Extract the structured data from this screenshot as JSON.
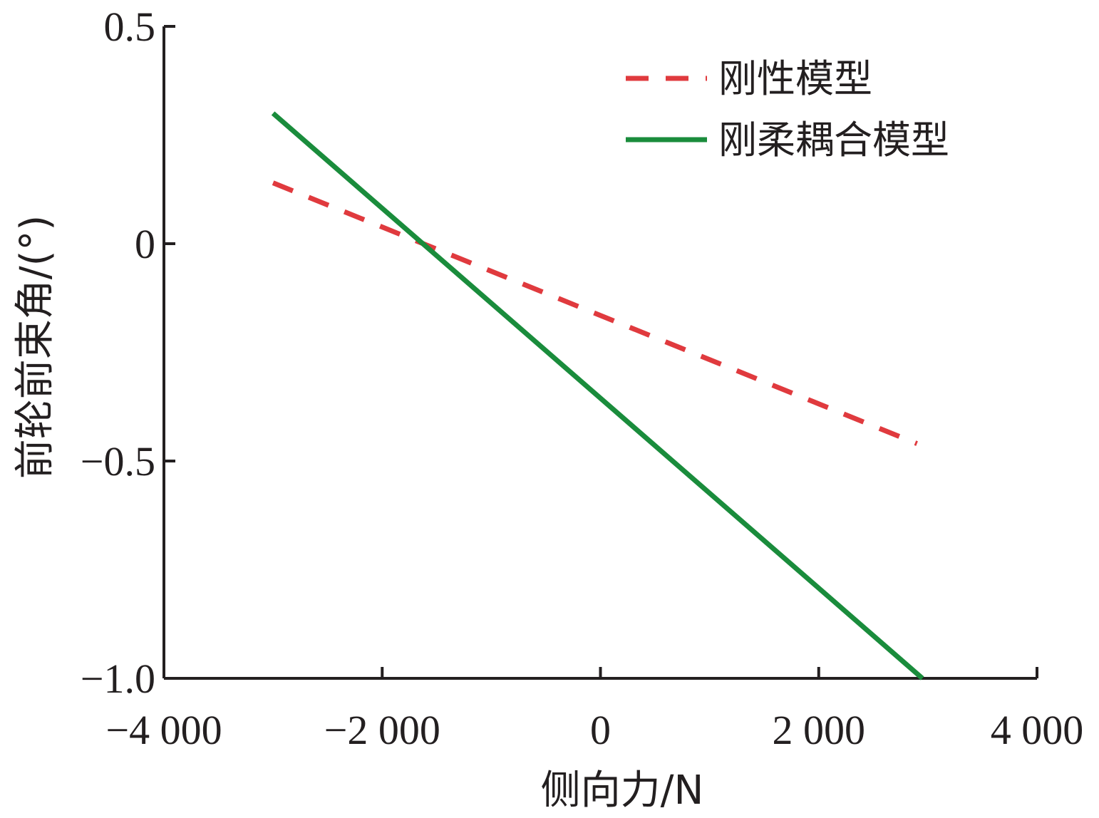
{
  "chart_data": {
    "type": "line",
    "title": "",
    "xlabel": "侧向力/N",
    "ylabel": "前轮前束角/(°)",
    "xlim": [
      -4000,
      4000
    ],
    "ylim": [
      -1.0,
      0.5
    ],
    "xticks": [
      -4000,
      -2000,
      0,
      2000,
      4000
    ],
    "xtick_labels": [
      "−4 000",
      "−2 000",
      "0",
      "2 000",
      "4 000"
    ],
    "yticks": [
      0.5,
      0,
      -0.5,
      -1.0
    ],
    "ytick_labels": [
      "0.5",
      "0",
      "−0.5",
      "−1.0"
    ],
    "grid": false,
    "legend_position": "top-right",
    "series": [
      {
        "name": "刚性模型",
        "color": "#e03a3e",
        "style": "dashed",
        "x": [
          -3000,
          2900
        ],
        "y": [
          0.14,
          -0.46
        ]
      },
      {
        "name": "刚柔耦合模型",
        "color": "#1a8c3c",
        "style": "solid",
        "x": [
          -3000,
          2950
        ],
        "y": [
          0.3,
          -1.0
        ]
      }
    ]
  }
}
